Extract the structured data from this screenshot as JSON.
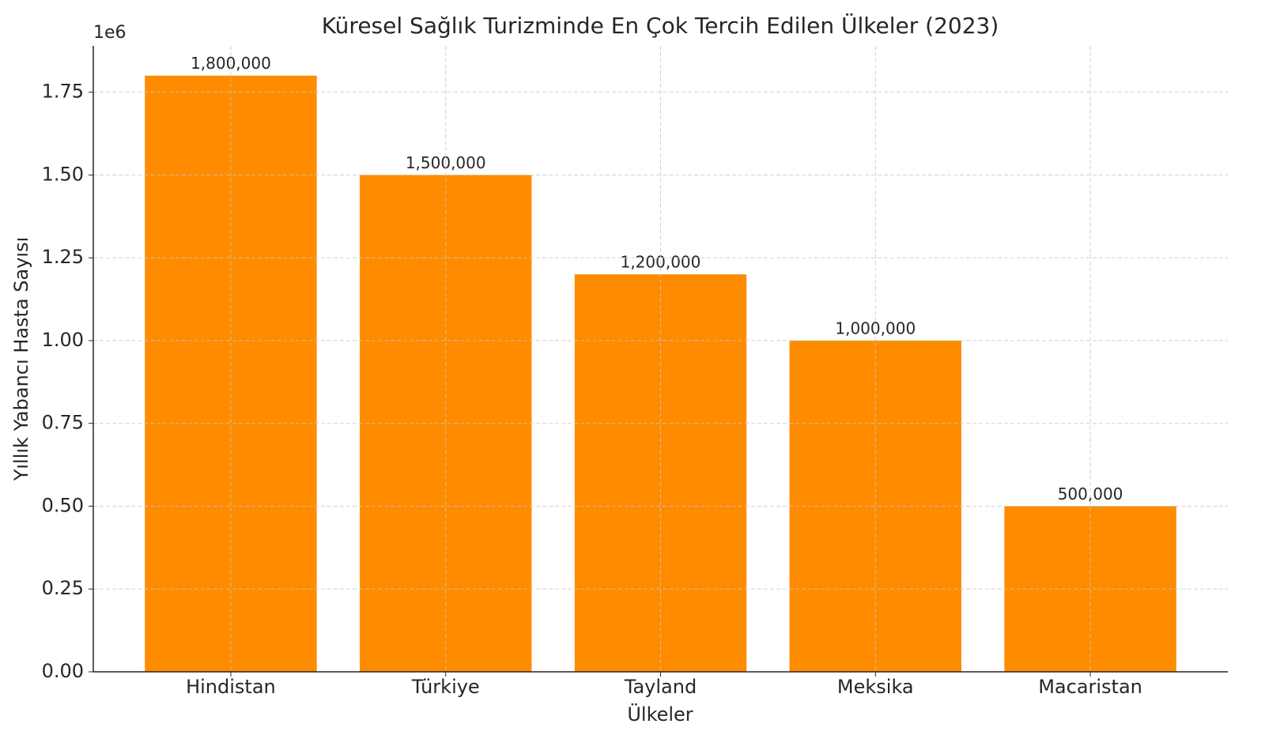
{
  "chart_data": {
    "type": "bar",
    "title": "Küresel Sağlık Turizminde En Çok Tercih Edilen Ülkeler (2023)",
    "x_label": "Ülkeler",
    "y_label": "Yıllık Yabancı Hasta Sayısı",
    "y_offset_label": "1e6",
    "categories": [
      "Hindistan",
      "Türkiye",
      "Tayland",
      "Meksika",
      "Macaristan"
    ],
    "values": [
      1800000,
      1500000,
      1200000,
      1000000,
      500000
    ],
    "value_labels": [
      "1,800,000",
      "1,500,000",
      "1,200,000",
      "1,000,000",
      "500,000"
    ],
    "color": "#ff8c00",
    "ylim": [
      0,
      1890000
    ],
    "yticks": [
      {
        "value": 0,
        "label": "0.00"
      },
      {
        "value": 250000,
        "label": "0.25"
      },
      {
        "value": 500000,
        "label": "0.50"
      },
      {
        "value": 750000,
        "label": "0.75"
      },
      {
        "value": 1000000,
        "label": "1.00"
      },
      {
        "value": 1250000,
        "label": "1.25"
      },
      {
        "value": 1500000,
        "label": "1.50"
      },
      {
        "value": 1750000,
        "label": "1.75"
      }
    ],
    "grid": true
  }
}
